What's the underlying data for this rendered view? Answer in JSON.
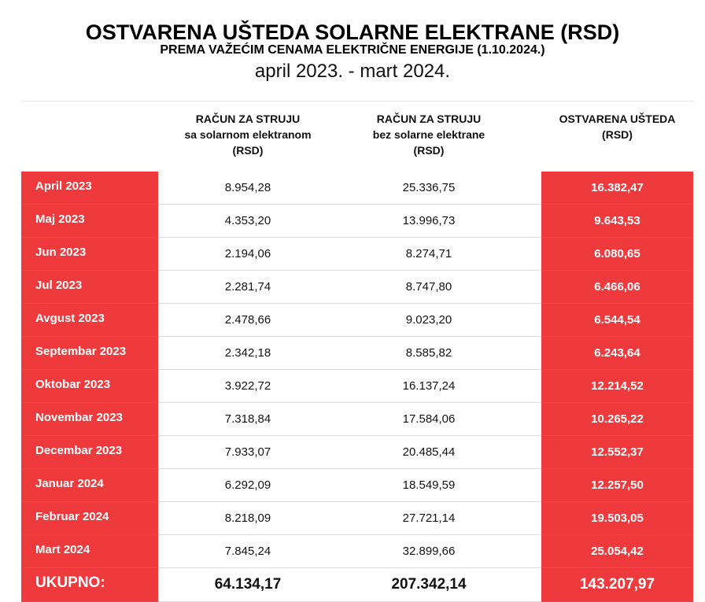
{
  "title": "OSTVARENA UŠTEDA SOLARNE ELEKTRANE (RSD)",
  "subtitle": "PREMA VAŽEĆIM CENAMA ELEKTRIČNE ENERGIJE (1.10.2024.)",
  "period": "april 2023. - mart 2024.",
  "colors": {
    "accent": "#ef3a3d"
  },
  "headers": {
    "col2": [
      "RAČUN ZA STRUJU",
      "sa solarnom elektranom",
      "(RSD)"
    ],
    "col3": [
      "RAČUN ZA STRUJU",
      "bez solarne elektrane",
      "(RSD)"
    ],
    "col4": [
      "OSTVARENA UŠTEDA",
      "(RSD)"
    ]
  },
  "rows": [
    {
      "month": "April 2023",
      "with_solar": "8.954,28",
      "without_solar": "25.336,75",
      "savings": "16.382,47"
    },
    {
      "month": "Maj 2023",
      "with_solar": "4.353,20",
      "without_solar": "13.996,73",
      "savings": "9.643,53"
    },
    {
      "month": "Jun 2023",
      "with_solar": "2.194,06",
      "without_solar": "8.274,71",
      "savings": "6.080,65"
    },
    {
      "month": "Jul 2023",
      "with_solar": "2.281,74",
      "without_solar": "8.747,80",
      "savings": "6.466,06"
    },
    {
      "month": "Avgust 2023",
      "with_solar": "2.478,66",
      "without_solar": "9.023,20",
      "savings": "6.544,54"
    },
    {
      "month": "Septembar 2023",
      "with_solar": "2.342,18",
      "without_solar": "8.585,82",
      "savings": "6.243,64"
    },
    {
      "month": "Oktobar 2023",
      "with_solar": "3.922,72",
      "without_solar": "16.137,24",
      "savings": "12.214,52"
    },
    {
      "month": "Novembar 2023",
      "with_solar": "7.318,84",
      "without_solar": "17.584,06",
      "savings": "10.265,22"
    },
    {
      "month": "Decembar 2023",
      "with_solar": "7.933,07",
      "without_solar": "20.485,44",
      "savings": "12.552,37"
    },
    {
      "month": "Januar 2024",
      "with_solar": "6.292,09",
      "without_solar": "18.549,59",
      "savings": "12.257,50"
    },
    {
      "month": "Februar 2024",
      "with_solar": "8.218,09",
      "without_solar": "27.721,14",
      "savings": "19.503,05"
    },
    {
      "month": "Mart 2024",
      "with_solar": "7.845,24",
      "without_solar": "32.899,66",
      "savings": "25.054,42"
    }
  ],
  "total": {
    "label": "UKUPNO:",
    "with_solar": "64.134,17",
    "without_solar": "207.342,14",
    "savings": "143.207,97"
  }
}
